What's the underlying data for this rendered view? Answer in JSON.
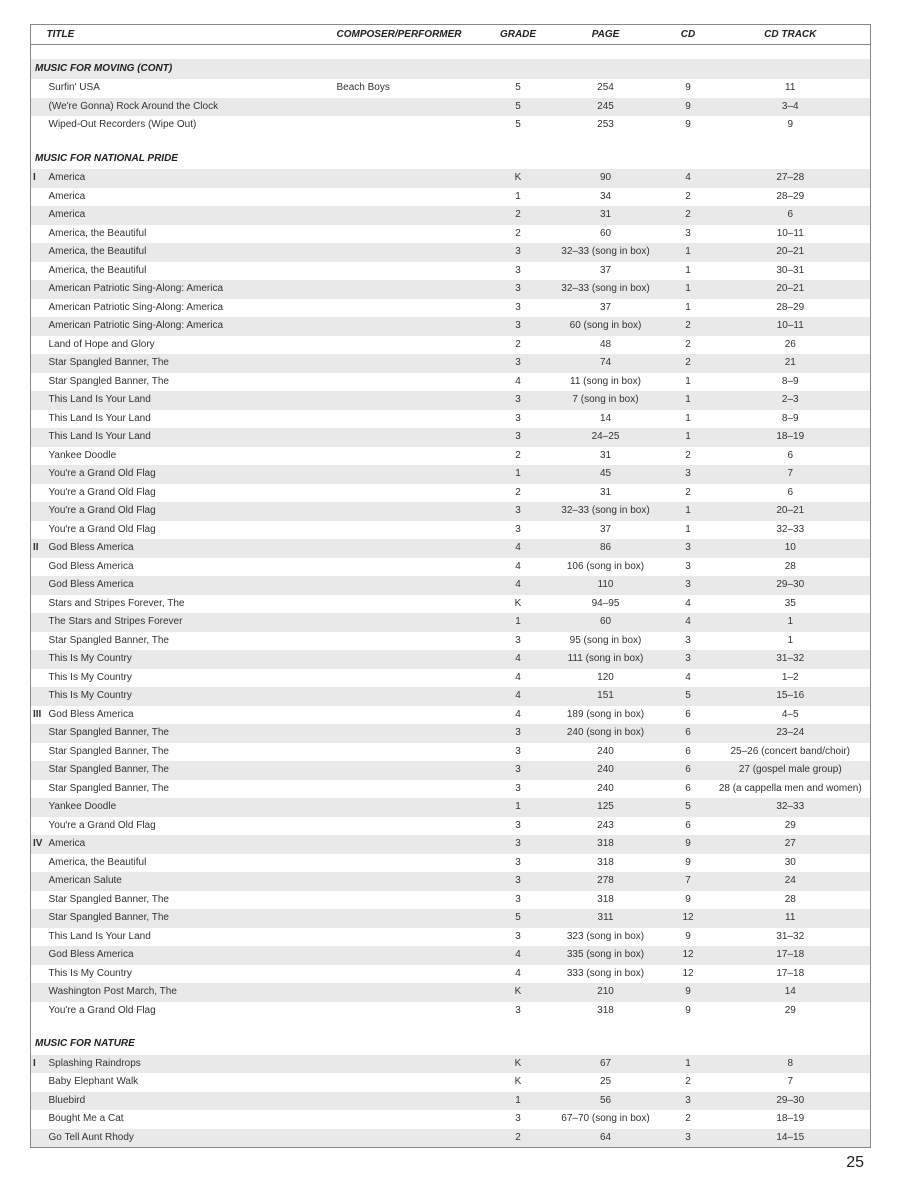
{
  "page_number": "25",
  "columns": {
    "title": "TITLE",
    "composer": "COMPOSER/PERFORMER",
    "grade": "GRADE",
    "page": "PAGE",
    "cd": "CD",
    "track": "CD TRACK"
  },
  "row_colors": {
    "shade": "#e9e9e9",
    "plain": "#ffffff"
  },
  "sections": [
    {
      "heading": "MUSIC FOR MOVING (CONT)",
      "heading_shade": true,
      "rows": [
        {
          "marker": "",
          "title": "Surfin' USA",
          "composer": "Beach Boys",
          "grade": "5",
          "page": "254",
          "cd": "9",
          "track": "11",
          "shade": false
        },
        {
          "marker": "",
          "title": "(We're Gonna) Rock Around the Clock",
          "composer": "",
          "grade": "5",
          "page": "245",
          "cd": "9",
          "track": "3–4",
          "shade": true
        },
        {
          "marker": "",
          "title": "Wiped-Out Recorders (Wipe Out)",
          "composer": "",
          "grade": "5",
          "page": "253",
          "cd": "9",
          "track": "9",
          "shade": false
        }
      ]
    },
    {
      "heading": "MUSIC FOR NATIONAL PRIDE",
      "heading_shade": false,
      "rows": [
        {
          "marker": "I",
          "title": "America",
          "composer": "",
          "grade": "K",
          "page": "90",
          "cd": "4",
          "track": "27–28",
          "shade": true
        },
        {
          "marker": "",
          "title": "America",
          "composer": "",
          "grade": "1",
          "page": "34",
          "cd": "2",
          "track": "28–29",
          "shade": false
        },
        {
          "marker": "",
          "title": "America",
          "composer": "",
          "grade": "2",
          "page": "31",
          "cd": "2",
          "track": "6",
          "shade": true
        },
        {
          "marker": "",
          "title": "America, the Beautiful",
          "composer": "",
          "grade": "2",
          "page": "60",
          "cd": "3",
          "track": "10–11",
          "shade": false
        },
        {
          "marker": "",
          "title": "America, the Beautiful",
          "composer": "",
          "grade": "3",
          "page": "32–33 (song in box)",
          "cd": "1",
          "track": "20–21",
          "shade": true
        },
        {
          "marker": "",
          "title": "America, the Beautiful",
          "composer": "",
          "grade": "3",
          "page": "37",
          "cd": "1",
          "track": "30–31",
          "shade": false
        },
        {
          "marker": "",
          "title": "American Patriotic Sing-Along: America",
          "composer": "",
          "grade": "3",
          "page": "32–33 (song in box)",
          "cd": "1",
          "track": "20–21",
          "shade": true
        },
        {
          "marker": "",
          "title": "American Patriotic Sing-Along: America",
          "composer": "",
          "grade": "3",
          "page": "37",
          "cd": "1",
          "track": "28–29",
          "shade": false
        },
        {
          "marker": "",
          "title": "American Patriotic Sing-Along: America",
          "composer": "",
          "grade": "3",
          "page": "60 (song in box)",
          "cd": "2",
          "track": "10–11",
          "shade": true
        },
        {
          "marker": "",
          "title": "Land of Hope and Glory",
          "composer": "",
          "grade": "2",
          "page": "48",
          "cd": "2",
          "track": "26",
          "shade": false
        },
        {
          "marker": "",
          "title": "Star Spangled Banner, The",
          "composer": "",
          "grade": "3",
          "page": "74",
          "cd": "2",
          "track": "21",
          "shade": true
        },
        {
          "marker": "",
          "title": "Star Spangled Banner, The",
          "composer": "",
          "grade": "4",
          "page": "11 (song in box)",
          "cd": "1",
          "track": "8–9",
          "shade": false
        },
        {
          "marker": "",
          "title": "This Land Is Your Land",
          "composer": "",
          "grade": "3",
          "page": "7 (song in box)",
          "cd": "1",
          "track": "2–3",
          "shade": true
        },
        {
          "marker": "",
          "title": "This Land Is Your Land",
          "composer": "",
          "grade": "3",
          "page": "14",
          "cd": "1",
          "track": "8–9",
          "shade": false
        },
        {
          "marker": "",
          "title": "This Land Is Your Land",
          "composer": "",
          "grade": "3",
          "page": "24–25",
          "cd": "1",
          "track": "18–19",
          "shade": true
        },
        {
          "marker": "",
          "title": "Yankee Doodle",
          "composer": "",
          "grade": "2",
          "page": "31",
          "cd": "2",
          "track": "6",
          "shade": false
        },
        {
          "marker": "",
          "title": "You're a Grand Old Flag",
          "composer": "",
          "grade": "1",
          "page": "45",
          "cd": "3",
          "track": "7",
          "shade": true
        },
        {
          "marker": "",
          "title": "You're a Grand Old Flag",
          "composer": "",
          "grade": "2",
          "page": "31",
          "cd": "2",
          "track": "6",
          "shade": false
        },
        {
          "marker": "",
          "title": "You're a Grand Old Flag",
          "composer": "",
          "grade": "3",
          "page": "32–33 (song in box)",
          "cd": "1",
          "track": "20–21",
          "shade": true
        },
        {
          "marker": "",
          "title": "You're a Grand Old Flag",
          "composer": "",
          "grade": "3",
          "page": "37",
          "cd": "1",
          "track": "32–33",
          "shade": false
        },
        {
          "marker": "II",
          "title": "God Bless America",
          "composer": "",
          "grade": "4",
          "page": "86",
          "cd": "3",
          "track": "10",
          "shade": true
        },
        {
          "marker": "",
          "title": "God Bless America",
          "composer": "",
          "grade": "4",
          "page": "106 (song in box)",
          "cd": "3",
          "track": "28",
          "shade": false
        },
        {
          "marker": "",
          "title": "God Bless America",
          "composer": "",
          "grade": "4",
          "page": "110",
          "cd": "3",
          "track": "29–30",
          "shade": true
        },
        {
          "marker": "",
          "title": "Stars and Stripes Forever, The",
          "composer": "",
          "grade": "K",
          "page": "94–95",
          "cd": "4",
          "track": "35",
          "shade": false
        },
        {
          "marker": "",
          "title": "The Stars and Stripes Forever",
          "composer": "",
          "grade": "1",
          "page": "60",
          "cd": "4",
          "track": "1",
          "shade": true
        },
        {
          "marker": "",
          "title": "Star Spangled Banner, The",
          "composer": "",
          "grade": "3",
          "page": "95 (song in box)",
          "cd": "3",
          "track": "1",
          "shade": false
        },
        {
          "marker": "",
          "title": "This Is My Country",
          "composer": "",
          "grade": "4",
          "page": "111 (song in box)",
          "cd": "3",
          "track": "31–32",
          "shade": true
        },
        {
          "marker": "",
          "title": "This Is My Country",
          "composer": "",
          "grade": "4",
          "page": "120",
          "cd": "4",
          "track": "1–2",
          "shade": false
        },
        {
          "marker": "",
          "title": "This Is My Country",
          "composer": "",
          "grade": "4",
          "page": "151",
          "cd": "5",
          "track": "15–16",
          "shade": true
        },
        {
          "marker": "III",
          "title": "God Bless America",
          "composer": "",
          "grade": "4",
          "page": "189 (song in box)",
          "cd": "6",
          "track": "4–5",
          "shade": false
        },
        {
          "marker": "",
          "title": "Star Spangled Banner, The",
          "composer": "",
          "grade": "3",
          "page": "240 (song in box)",
          "cd": "6",
          "track": "23–24",
          "shade": true
        },
        {
          "marker": "",
          "title": "Star Spangled Banner, The",
          "composer": "",
          "grade": "3",
          "page": "240",
          "cd": "6",
          "track": "25–26 (concert band/choir)",
          "shade": false
        },
        {
          "marker": "",
          "title": "Star Spangled Banner, The",
          "composer": "",
          "grade": "3",
          "page": "240",
          "cd": "6",
          "track": "27 (gospel male group)",
          "shade": true
        },
        {
          "marker": "",
          "title": "Star Spangled Banner, The",
          "composer": "",
          "grade": "3",
          "page": "240",
          "cd": "6",
          "track": "28 (a cappella men and women)",
          "shade": false
        },
        {
          "marker": "",
          "title": "Yankee Doodle",
          "composer": "",
          "grade": "1",
          "page": "125",
          "cd": "5",
          "track": "32–33",
          "shade": true
        },
        {
          "marker": "",
          "title": "You're a Grand Old Flag",
          "composer": "",
          "grade": "3",
          "page": "243",
          "cd": "6",
          "track": "29",
          "shade": false
        },
        {
          "marker": "IV",
          "title": "America",
          "composer": "",
          "grade": "3",
          "page": "318",
          "cd": "9",
          "track": "27",
          "shade": true
        },
        {
          "marker": "",
          "title": "America, the Beautiful",
          "composer": "",
          "grade": "3",
          "page": "318",
          "cd": "9",
          "track": "30",
          "shade": false
        },
        {
          "marker": "",
          "title": "American Salute",
          "composer": "",
          "grade": "3",
          "page": "278",
          "cd": "7",
          "track": "24",
          "shade": true
        },
        {
          "marker": "",
          "title": "Star Spangled Banner, The",
          "composer": "",
          "grade": "3",
          "page": "318",
          "cd": "9",
          "track": "28",
          "shade": false
        },
        {
          "marker": "",
          "title": "Star Spangled Banner, The",
          "composer": "",
          "grade": "5",
          "page": "311",
          "cd": "12",
          "track": "11",
          "shade": true
        },
        {
          "marker": "",
          "title": "This Land Is Your Land",
          "composer": "",
          "grade": "3",
          "page": "323 (song in box)",
          "cd": "9",
          "track": "31–32",
          "shade": false
        },
        {
          "marker": "",
          "title": "God Bless America",
          "composer": "",
          "grade": "4",
          "page": "335 (song in box)",
          "cd": "12",
          "track": "17–18",
          "shade": true
        },
        {
          "marker": "",
          "title": "This Is My Country",
          "composer": "",
          "grade": "4",
          "page": "333 (song in box)",
          "cd": "12",
          "track": "17–18",
          "shade": false
        },
        {
          "marker": "",
          "title": "Washington Post March, The",
          "composer": "",
          "grade": "K",
          "page": "210",
          "cd": "9",
          "track": "14",
          "shade": true
        },
        {
          "marker": "",
          "title": "You're a Grand Old Flag",
          "composer": "",
          "grade": "3",
          "page": "318",
          "cd": "9",
          "track": "29",
          "shade": false
        }
      ]
    },
    {
      "heading": "MUSIC FOR NATURE",
      "heading_shade": false,
      "rows": [
        {
          "marker": "I",
          "title": "Splashing Raindrops",
          "composer": "",
          "grade": "K",
          "page": "67",
          "cd": "1",
          "track": "8",
          "shade": true
        },
        {
          "marker": "",
          "title": "Baby Elephant Walk",
          "composer": "",
          "grade": "K",
          "page": "25",
          "cd": "2",
          "track": "7",
          "shade": false
        },
        {
          "marker": "",
          "title": "Bluebird",
          "composer": "",
          "grade": "1",
          "page": "56",
          "cd": "3",
          "track": "29–30",
          "shade": true
        },
        {
          "marker": "",
          "title": "Bought Me a Cat",
          "composer": "",
          "grade": "3",
          "page": "67–70 (song in box)",
          "cd": "2",
          "track": "18–19",
          "shade": false
        },
        {
          "marker": "",
          "title": "Go Tell Aunt Rhody",
          "composer": "",
          "grade": "2",
          "page": "64",
          "cd": "3",
          "track": "14–15",
          "shade": true
        }
      ]
    }
  ]
}
